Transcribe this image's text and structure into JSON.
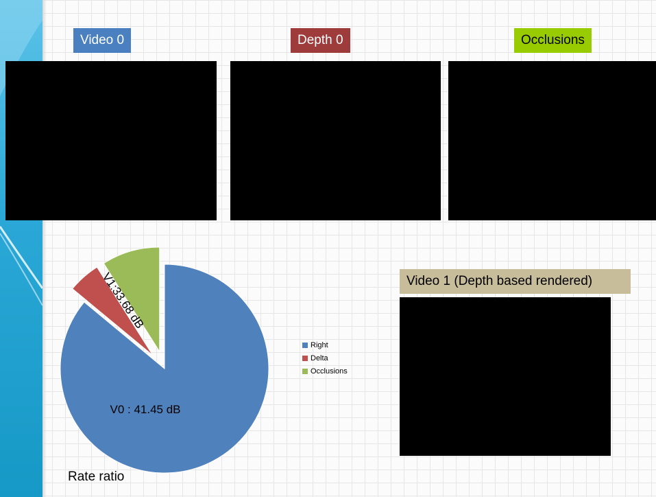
{
  "panels": {
    "video0": {
      "label": "Video 0",
      "color": "#4a7fc0",
      "text_color": "#ffffff"
    },
    "depth0": {
      "label": "Depth 0",
      "color": "#9e3b3b",
      "text_color": "#ffffff"
    },
    "occlusions": {
      "label": "Occlusions",
      "color": "#99cc00",
      "text_color": "#000000"
    },
    "video1": {
      "label": "Video 1 (Depth based rendered)",
      "color": "#c8bd9a",
      "text_color": "#000000"
    }
  },
  "chart_data": {
    "type": "pie",
    "title": "",
    "slices": [
      {
        "name": "Right",
        "value": 86,
        "color": "#4f81bd",
        "exploded": false
      },
      {
        "name": "Delta",
        "value": 5,
        "color": "#c0504d",
        "exploded": true
      },
      {
        "name": "Occlusions",
        "value": 9,
        "color": "#9bbb59",
        "exploded": true
      }
    ],
    "annotations": {
      "main": "V0 : 41.45 dB",
      "secondary": "V1:33.68 dB"
    },
    "legend": [
      "Right",
      "Delta",
      "Occlusions"
    ],
    "legend_position": "right"
  },
  "caption": "Rate ratio"
}
